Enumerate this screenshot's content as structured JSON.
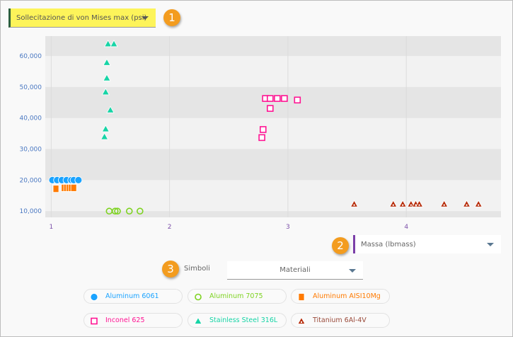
{
  "y_selector": {
    "label": "Sollecitazione di von Mises max (psi)"
  },
  "x_selector": {
    "label": "Massa (lbmass)"
  },
  "symbols": {
    "label": "Simboli",
    "value": "Materiali"
  },
  "badges": [
    "1",
    "2",
    "3"
  ],
  "chart_data": {
    "type": "scatter",
    "xlim": [
      0.95,
      4.8
    ],
    "ylim": [
      8000,
      66400
    ],
    "x_ticks": [
      "1",
      "2",
      "3",
      "4"
    ],
    "y_ticks": [
      "10,000",
      "20,000",
      "30,000",
      "40,000",
      "50,000",
      "60,000"
    ],
    "x_tick_values": [
      1,
      2,
      3,
      4
    ],
    "y_tick_values": [
      10000,
      20000,
      30000,
      40000,
      50000,
      60000
    ],
    "series": [
      {
        "name": "Aluminum 6061",
        "symbol": "circle",
        "color": "#1aa3ff",
        "points": [
          [
            1.01,
            20000
          ],
          [
            1.05,
            20000
          ],
          [
            1.09,
            20000
          ],
          [
            1.13,
            20000
          ],
          [
            1.17,
            20000
          ],
          [
            1.19,
            20000
          ],
          [
            1.23,
            20000
          ]
        ]
      },
      {
        "name": "Aluminum 7075",
        "symbol": "circle-open",
        "color": "#7ed321",
        "points": [
          [
            1.49,
            10000
          ],
          [
            1.54,
            10000
          ],
          [
            1.56,
            10000
          ],
          [
            1.66,
            10000
          ],
          [
            1.75,
            10000
          ]
        ]
      },
      {
        "name": "Aluminum AISI10Mg",
        "symbol": "square",
        "color": "#ff7a00",
        "points": [
          [
            1.04,
            17200
          ],
          [
            1.11,
            17500
          ],
          [
            1.13,
            17500
          ],
          [
            1.15,
            17500
          ],
          [
            1.17,
            17500
          ],
          [
            1.19,
            17500
          ]
        ]
      },
      {
        "name": "Inconel 625",
        "symbol": "square-open",
        "color": "#ff1493",
        "points": [
          [
            2.81,
            46300
          ],
          [
            2.85,
            46300
          ],
          [
            2.91,
            46300
          ],
          [
            2.97,
            46300
          ],
          [
            3.08,
            45800
          ],
          [
            2.85,
            43100
          ],
          [
            2.79,
            36300
          ],
          [
            2.78,
            33700
          ]
        ]
      },
      {
        "name": "Stainless Steel 316L",
        "symbol": "triangle",
        "color": "#17d4a6",
        "points": [
          [
            1.48,
            63900
          ],
          [
            1.53,
            63900
          ],
          [
            1.47,
            57900
          ],
          [
            1.47,
            52900
          ],
          [
            1.46,
            48400
          ],
          [
            1.5,
            42600
          ],
          [
            1.46,
            36500
          ],
          [
            1.45,
            34000
          ]
        ]
      },
      {
        "name": "Titanium 6Al-4V",
        "symbol": "triangle-dot",
        "color": "#b52a08",
        "points": [
          [
            3.56,
            12300
          ],
          [
            3.89,
            12300
          ],
          [
            3.97,
            12300
          ],
          [
            4.04,
            12300
          ],
          [
            4.08,
            12300
          ],
          [
            4.11,
            12300
          ],
          [
            4.32,
            12300
          ],
          [
            4.51,
            12300
          ],
          [
            4.61,
            12300
          ]
        ]
      }
    ]
  }
}
